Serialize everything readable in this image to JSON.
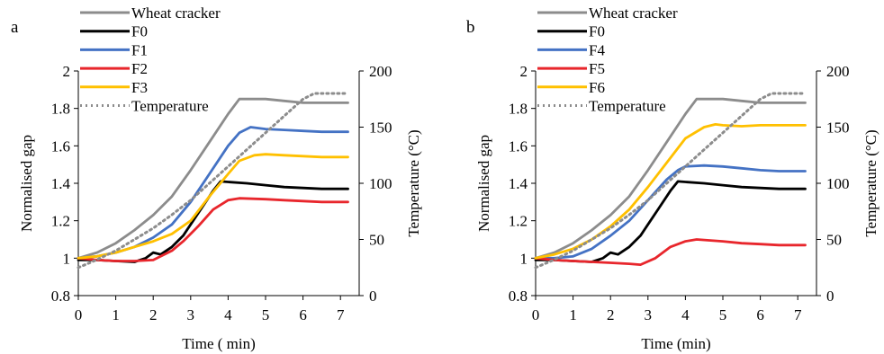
{
  "colors": {
    "wheat": "#8c8c8c",
    "f0": "#000000",
    "blue": "#4472c4",
    "red": "#e8262c",
    "yellow": "#ffc000",
    "temperature": "#8c8c8c"
  },
  "chart_data": [
    {
      "type": "line",
      "panel_label": "a",
      "xlabel": "Time ( min)",
      "ylabel": "Normalised gap",
      "y2label": "Temperature (°C)",
      "xlim": [
        0,
        7.5
      ],
      "ylim": [
        0.8,
        2
      ],
      "y2lim": [
        0,
        200
      ],
      "xticks": [
        "0",
        "1",
        "2",
        "3",
        "4",
        "5",
        "6",
        "7"
      ],
      "yticks": [
        "0.8",
        "1",
        "1.2",
        "1.4",
        "1.6",
        "1.8",
        "2"
      ],
      "y2ticks": [
        "0",
        "50",
        "100",
        "150",
        "200"
      ],
      "grid": false,
      "legend_position": "top-left",
      "series": [
        {
          "name": "Wheat cracker",
          "color_key": "wheat",
          "dash": false,
          "axis": "left",
          "x": [
            0,
            0.5,
            1,
            1.5,
            2,
            2.5,
            3,
            3.5,
            4,
            4.3,
            4.5,
            5,
            5.5,
            6,
            6.5,
            7.2
          ],
          "y": [
            1.0,
            1.03,
            1.08,
            1.15,
            1.23,
            1.33,
            1.47,
            1.62,
            1.77,
            1.85,
            1.85,
            1.85,
            1.84,
            1.83,
            1.83,
            1.83
          ]
        },
        {
          "name": "F0",
          "color_key": "f0",
          "dash": false,
          "axis": "left",
          "x": [
            0,
            0.5,
            1,
            1.5,
            1.8,
            2.0,
            2.2,
            2.5,
            2.8,
            3.0,
            3.3,
            3.6,
            3.8,
            4.5,
            5,
            5.5,
            6,
            6.5,
            7.2
          ],
          "y": [
            0.99,
            0.99,
            0.985,
            0.98,
            1.0,
            1.03,
            1.02,
            1.06,
            1.12,
            1.18,
            1.27,
            1.36,
            1.41,
            1.4,
            1.39,
            1.38,
            1.375,
            1.37,
            1.37
          ]
        },
        {
          "name": "F1",
          "color_key": "blue",
          "dash": false,
          "axis": "left",
          "x": [
            0,
            0.5,
            1,
            1.5,
            2,
            2.5,
            3,
            3.5,
            4,
            4.3,
            4.6,
            5,
            5.5,
            6,
            6.5,
            7.2
          ],
          "y": [
            1.0,
            1.01,
            1.03,
            1.06,
            1.11,
            1.18,
            1.3,
            1.45,
            1.6,
            1.67,
            1.7,
            1.69,
            1.685,
            1.68,
            1.675,
            1.675
          ]
        },
        {
          "name": "F2",
          "color_key": "red",
          "dash": false,
          "axis": "left",
          "x": [
            0,
            0.5,
            1,
            1.5,
            2,
            2.5,
            2.8,
            3.2,
            3.6,
            4,
            4.3,
            5,
            5.5,
            6,
            6.5,
            7.2
          ],
          "y": [
            1.0,
            0.99,
            0.985,
            0.985,
            0.99,
            1.04,
            1.09,
            1.17,
            1.26,
            1.31,
            1.32,
            1.315,
            1.31,
            1.305,
            1.3,
            1.3
          ]
        },
        {
          "name": "F3",
          "color_key": "yellow",
          "dash": false,
          "axis": "left",
          "x": [
            0,
            0.5,
            1,
            1.5,
            2,
            2.5,
            3,
            3.5,
            4,
            4.3,
            4.7,
            5,
            5.5,
            6,
            6.5,
            7.2
          ],
          "y": [
            1.0,
            1.01,
            1.03,
            1.06,
            1.09,
            1.13,
            1.2,
            1.33,
            1.45,
            1.52,
            1.55,
            1.555,
            1.55,
            1.545,
            1.54,
            1.54
          ]
        },
        {
          "name": "Temperature",
          "color_key": "temperature",
          "dash": true,
          "axis": "right",
          "x": [
            0,
            0.5,
            1,
            1.5,
            2,
            2.5,
            3,
            3.5,
            4,
            4.5,
            5,
            5.5,
            6,
            6.3,
            7.2
          ],
          "y": [
            25,
            32,
            40,
            50,
            60,
            72,
            85,
            100,
            115,
            130,
            145,
            160,
            175,
            180,
            180
          ]
        }
      ]
    },
    {
      "type": "line",
      "panel_label": "b",
      "xlabel": "Time (min)",
      "ylabel": "Normalised gap",
      "y2label": "Temperature (°C)",
      "xlim": [
        0,
        7.5
      ],
      "ylim": [
        0.8,
        2
      ],
      "y2lim": [
        0,
        200
      ],
      "xticks": [
        "0",
        "1",
        "2",
        "3",
        "4",
        "5",
        "6",
        "7"
      ],
      "yticks": [
        "0.8",
        "1",
        "1.2",
        "1.4",
        "1.6",
        "1.8",
        "2"
      ],
      "y2ticks": [
        "0",
        "50",
        "100",
        "150",
        "200"
      ],
      "grid": false,
      "legend_position": "top-left",
      "series": [
        {
          "name": "Wheat cracker",
          "color_key": "wheat",
          "dash": false,
          "axis": "left",
          "x": [
            0,
            0.5,
            1,
            1.5,
            2,
            2.5,
            3,
            3.5,
            4,
            4.3,
            4.5,
            5,
            5.5,
            6,
            6.5,
            7.2
          ],
          "y": [
            1.0,
            1.03,
            1.08,
            1.15,
            1.23,
            1.33,
            1.47,
            1.62,
            1.77,
            1.85,
            1.85,
            1.85,
            1.84,
            1.83,
            1.83,
            1.83
          ]
        },
        {
          "name": "F0",
          "color_key": "f0",
          "dash": false,
          "axis": "left",
          "x": [
            0,
            0.5,
            1,
            1.5,
            1.8,
            2.0,
            2.2,
            2.5,
            2.8,
            3.0,
            3.3,
            3.6,
            3.8,
            4.5,
            5,
            5.5,
            6,
            6.5,
            7.2
          ],
          "y": [
            0.99,
            0.99,
            0.985,
            0.98,
            1.0,
            1.03,
            1.02,
            1.06,
            1.12,
            1.18,
            1.27,
            1.36,
            1.41,
            1.4,
            1.39,
            1.38,
            1.375,
            1.37,
            1.37
          ]
        },
        {
          "name": "F4",
          "color_key": "blue",
          "dash": false,
          "axis": "left",
          "x": [
            0,
            0.5,
            1,
            1.5,
            2,
            2.5,
            3,
            3.5,
            3.8,
            4,
            4.5,
            5,
            5.5,
            6,
            6.5,
            7.2
          ],
          "y": [
            1.0,
            1.0,
            1.01,
            1.05,
            1.12,
            1.2,
            1.31,
            1.42,
            1.47,
            1.49,
            1.495,
            1.49,
            1.48,
            1.47,
            1.465,
            1.465
          ]
        },
        {
          "name": "F5",
          "color_key": "red",
          "dash": false,
          "axis": "left",
          "x": [
            0,
            0.5,
            1,
            1.5,
            2,
            2.5,
            2.8,
            3.2,
            3.6,
            4,
            4.3,
            5,
            5.5,
            6,
            6.5,
            7.2
          ],
          "y": [
            1.0,
            0.99,
            0.985,
            0.98,
            0.975,
            0.97,
            0.965,
            1.0,
            1.06,
            1.09,
            1.1,
            1.09,
            1.08,
            1.075,
            1.07,
            1.07
          ]
        },
        {
          "name": "F6",
          "color_key": "yellow",
          "dash": false,
          "axis": "left",
          "x": [
            0,
            0.5,
            1,
            1.5,
            2,
            2.5,
            3,
            3.5,
            4,
            4.5,
            4.8,
            5,
            5.5,
            6,
            6.5,
            7.2
          ],
          "y": [
            1.0,
            1.02,
            1.05,
            1.1,
            1.17,
            1.26,
            1.38,
            1.51,
            1.64,
            1.7,
            1.715,
            1.71,
            1.705,
            1.71,
            1.71,
            1.71
          ]
        },
        {
          "name": "Temperature",
          "color_key": "temperature",
          "dash": true,
          "axis": "right",
          "x": [
            0,
            0.5,
            1,
            1.5,
            2,
            2.5,
            3,
            3.5,
            4,
            4.5,
            5,
            5.5,
            6,
            6.3,
            7.2
          ],
          "y": [
            25,
            32,
            40,
            50,
            60,
            72,
            85,
            100,
            115,
            130,
            145,
            160,
            175,
            180,
            180
          ]
        }
      ]
    }
  ]
}
